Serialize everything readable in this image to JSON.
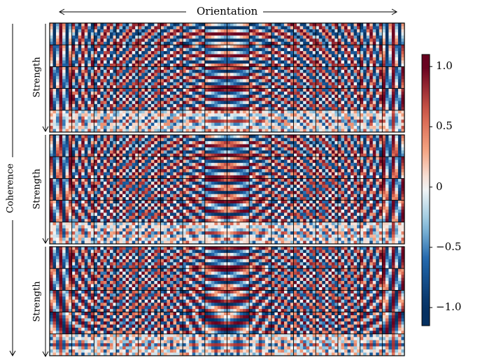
{
  "figure": {
    "x_axis_label": "Orientation",
    "outer_y_label": "Coherence",
    "block_y_label": "Strength",
    "grid": {
      "blocks": 3,
      "rows_per_block": 5,
      "columns": 16,
      "cells_per_tile": 7
    },
    "colormap": "RdBu_r",
    "colors": {
      "low": "#053061",
      "mid": "#f7f7f7",
      "high": "#67001f"
    },
    "colorbar": {
      "range": [
        -1.15,
        1.1
      ],
      "ticks": [
        {
          "value": 1.0,
          "label": "1.0"
        },
        {
          "value": 0.5,
          "label": "0.5"
        },
        {
          "value": 0,
          "label": "0"
        },
        {
          "value": -0.5,
          "label": "−0.5"
        },
        {
          "value": -1.0,
          "label": "−1.0"
        }
      ]
    }
  }
}
